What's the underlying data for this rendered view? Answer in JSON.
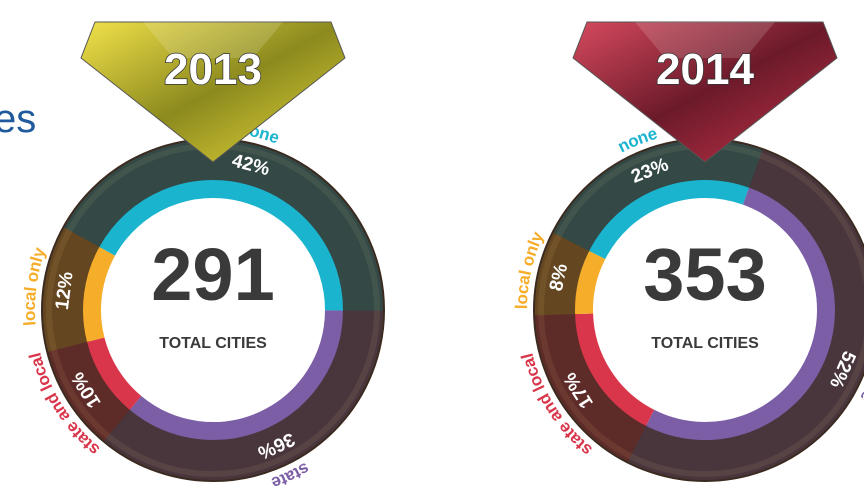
{
  "heading_fragment": "es",
  "chart_data": [
    {
      "type": "pie",
      "title": "2013",
      "total": 291,
      "total_label": "TOTAL CITIES",
      "categories": [
        "none",
        "state",
        "state and local",
        "local only"
      ],
      "values": [
        42,
        36,
        10,
        12
      ],
      "value_labels": [
        "42%",
        "36%",
        "10%",
        "12%"
      ],
      "colors": [
        "#1bb4cf",
        "#7b5ea6",
        "#d9364b",
        "#f6ad2a"
      ]
    },
    {
      "type": "pie",
      "title": "2014",
      "total": 353,
      "total_label": "TOTAL CITIES",
      "categories": [
        "none",
        "state",
        "state and local",
        "local only"
      ],
      "values": [
        23,
        52,
        17,
        8
      ],
      "value_labels": [
        "23%",
        "52%",
        "17%",
        "8%"
      ],
      "colors": [
        "#1bb4cf",
        "#7b5ea6",
        "#d9364b",
        "#f6ad2a"
      ]
    }
  ]
}
